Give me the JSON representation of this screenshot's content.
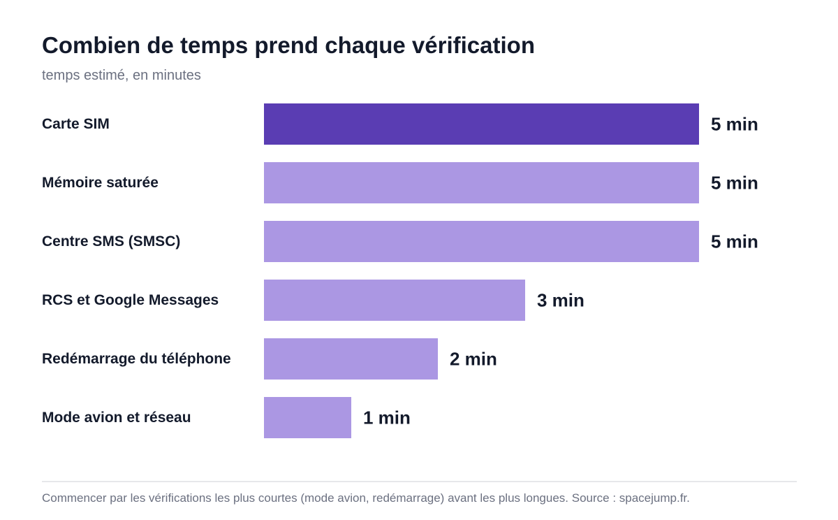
{
  "title": "Combien de temps prend chaque vérification",
  "subtitle": "temps estimé, en minutes",
  "footer": "Commencer par les vérifications les plus courtes (mode avion, redémarrage) avant les plus longues. Source : spacejump.fr.",
  "colors": {
    "highlight": "#5a3db3",
    "bar": "#ab97e3",
    "text": "#131a2b",
    "muted": "#6b7080",
    "rule": "#e6e7ea"
  },
  "chart_data": {
    "type": "bar",
    "orientation": "horizontal",
    "categories": [
      "Carte SIM",
      "Mémoire saturée",
      "Centre SMS (SMSC)",
      "RCS et Google Messages",
      "Redémarrage du téléphone",
      "Mode avion et réseau"
    ],
    "values": [
      5,
      5,
      5,
      3,
      2,
      1
    ],
    "value_labels": [
      "5 min",
      "5 min",
      "5 min",
      "3 min",
      "2 min",
      "1 min"
    ],
    "highlighted_index": 0,
    "unit": "min",
    "xlim": [
      0,
      5
    ],
    "grid": false,
    "legend": "none"
  }
}
